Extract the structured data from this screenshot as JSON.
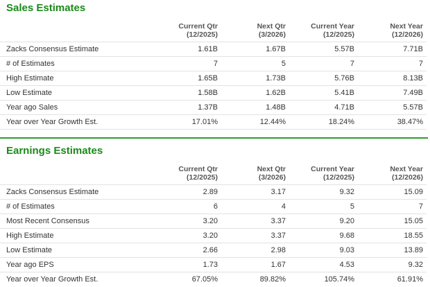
{
  "sections": [
    {
      "title": "Sales Estimates",
      "columns": [
        {
          "name": "Current Qtr",
          "period": "(12/2025)"
        },
        {
          "name": "Next Qtr",
          "period": "(3/2026)"
        },
        {
          "name": "Current Year",
          "period": "(12/2025)"
        },
        {
          "name": "Next Year",
          "period": "(12/2026)"
        }
      ],
      "rows": [
        {
          "label": "Zacks Consensus Estimate",
          "values": [
            "1.61B",
            "1.67B",
            "5.57B",
            "7.71B"
          ]
        },
        {
          "label": "# of Estimates",
          "values": [
            "7",
            "5",
            "7",
            "7"
          ]
        },
        {
          "label": "High Estimate",
          "values": [
            "1.65B",
            "1.73B",
            "5.76B",
            "8.13B"
          ]
        },
        {
          "label": "Low Estimate",
          "values": [
            "1.58B",
            "1.62B",
            "5.41B",
            "7.49B"
          ]
        },
        {
          "label": "Year ago Sales",
          "values": [
            "1.37B",
            "1.48B",
            "4.71B",
            "5.57B"
          ]
        },
        {
          "label": "Year over Year Growth Est.",
          "values": [
            "17.01%",
            "12.44%",
            "18.24%",
            "38.47%"
          ]
        }
      ]
    },
    {
      "title": "Earnings Estimates",
      "columns": [
        {
          "name": "Current Qtr",
          "period": "(12/2025)"
        },
        {
          "name": "Next Qtr",
          "period": "(3/2026)"
        },
        {
          "name": "Current Year",
          "period": "(12/2025)"
        },
        {
          "name": "Next Year",
          "period": "(12/2026)"
        }
      ],
      "rows": [
        {
          "label": "Zacks Consensus Estimate",
          "values": [
            "2.89",
            "3.17",
            "9.32",
            "15.09"
          ]
        },
        {
          "label": "# of Estimates",
          "values": [
            "6",
            "4",
            "5",
            "7"
          ]
        },
        {
          "label": "Most Recent Consensus",
          "values": [
            "3.20",
            "3.37",
            "9.20",
            "15.05"
          ]
        },
        {
          "label": "High Estimate",
          "values": [
            "3.20",
            "3.37",
            "9.68",
            "18.55"
          ]
        },
        {
          "label": "Low Estimate",
          "values": [
            "2.66",
            "2.98",
            "9.03",
            "13.89"
          ]
        },
        {
          "label": "Year ago EPS",
          "values": [
            "1.73",
            "1.67",
            "4.53",
            "9.32"
          ]
        },
        {
          "label": "Year over Year Growth Est.",
          "values": [
            "67.05%",
            "89.82%",
            "105.74%",
            "61.91%"
          ]
        }
      ]
    }
  ]
}
